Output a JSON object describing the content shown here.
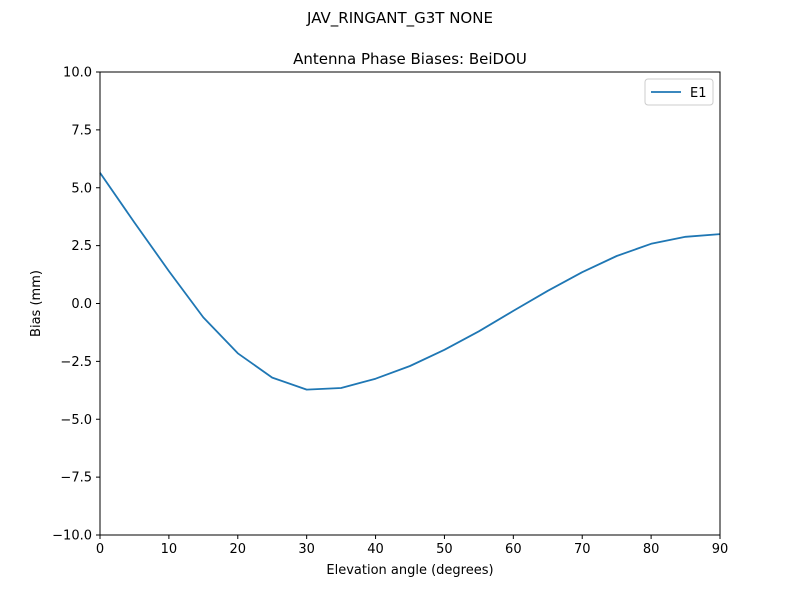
{
  "figure": {
    "suptitle": "JAV_RINGANT_G3T NONE"
  },
  "chart_data": {
    "type": "line",
    "title": "Antenna Phase Biases: BeiDOU",
    "xlabel": "Elevation angle (degrees)",
    "ylabel": "Bias (mm)",
    "xlim": [
      0,
      90
    ],
    "ylim": [
      -10,
      10
    ],
    "xticks": [
      0,
      10,
      20,
      30,
      40,
      50,
      60,
      70,
      80,
      90
    ],
    "xtick_labels": [
      "0",
      "10",
      "20",
      "30",
      "40",
      "50",
      "60",
      "70",
      "80",
      "90"
    ],
    "yticks": [
      -10,
      -7.5,
      -5,
      -2.5,
      0,
      2.5,
      5,
      7.5,
      10
    ],
    "ytick_labels": [
      "−10.0",
      "−7.5",
      "−5.0",
      "−2.5",
      "0.0",
      "2.5",
      "5.0",
      "7.5",
      "10.0"
    ],
    "grid": false,
    "legend_position": "top-right",
    "series": [
      {
        "name": "E1",
        "color": "#1f77b4",
        "x": [
          0,
          5,
          10,
          15,
          20,
          25,
          30,
          35,
          40,
          45,
          50,
          55,
          60,
          65,
          70,
          75,
          80,
          85,
          90
        ],
        "y": [
          5.65,
          3.5,
          1.4,
          -0.6,
          -2.15,
          -3.2,
          -3.72,
          -3.65,
          -3.25,
          -2.7,
          -2.0,
          -1.2,
          -0.32,
          0.55,
          1.35,
          2.05,
          2.58,
          2.88,
          3.0
        ]
      }
    ]
  }
}
